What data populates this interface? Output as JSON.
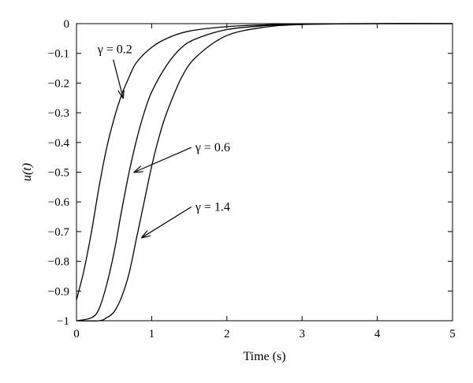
{
  "chart_data": {
    "type": "line",
    "title": "",
    "xlabel": "Time (s)",
    "ylabel": "u(t)",
    "xlim": [
      0,
      5
    ],
    "ylim": [
      -1,
      0
    ],
    "xticks": [
      0,
      1,
      2,
      3,
      4,
      5
    ],
    "yticks": [
      0,
      -0.1,
      -0.2,
      -0.3,
      -0.4,
      -0.5,
      -0.6,
      -0.7,
      -0.8,
      -0.9,
      -1
    ],
    "grid": false,
    "legend": "none",
    "line_color": "#000000",
    "series": [
      {
        "x": [
          0,
          0.1,
          0.2,
          0.3,
          0.4,
          0.5,
          0.6,
          0.7,
          0.8,
          1.0,
          1.2,
          1.5,
          2.0,
          2.5,
          3.0,
          4.0,
          5.0
        ],
        "y": [
          -0.93,
          -0.83,
          -0.7,
          -0.55,
          -0.42,
          -0.32,
          -0.24,
          -0.18,
          -0.13,
          -0.08,
          -0.05,
          -0.025,
          -0.01,
          -0.004,
          -0.001,
          0,
          0
        ]
      },
      {
        "x": [
          0,
          0.2,
          0.3,
          0.4,
          0.5,
          0.6,
          0.7,
          0.8,
          0.9,
          1.0,
          1.2,
          1.4,
          1.6,
          2.0,
          2.5,
          3.0,
          4.0,
          5.0
        ],
        "y": [
          -1,
          -0.99,
          -0.96,
          -0.88,
          -0.77,
          -0.63,
          -0.5,
          -0.39,
          -0.3,
          -0.23,
          -0.14,
          -0.08,
          -0.05,
          -0.02,
          -0.007,
          -0.002,
          0,
          0
        ]
      },
      {
        "x": [
          0,
          0.3,
          0.4,
          0.5,
          0.6,
          0.7,
          0.8,
          0.9,
          1.0,
          1.1,
          1.2,
          1.4,
          1.6,
          2.0,
          2.5,
          3.0,
          4.0,
          5.0
        ],
        "y": [
          -1,
          -1,
          -0.99,
          -0.97,
          -0.92,
          -0.84,
          -0.72,
          -0.6,
          -0.48,
          -0.38,
          -0.3,
          -0.18,
          -0.11,
          -0.04,
          -0.012,
          -0.003,
          0,
          0
        ]
      }
    ],
    "annotations": [
      {
        "label": "γ = 0.2",
        "text_at": [
          0.28,
          -0.1
        ],
        "arrow_to": [
          0.62,
          -0.25
        ]
      },
      {
        "label": "γ = 0.6",
        "text_at": [
          1.58,
          -0.43
        ],
        "arrow_to": [
          0.77,
          -0.5
        ]
      },
      {
        "label": "γ = 1.4",
        "text_at": [
          1.58,
          -0.63
        ],
        "arrow_to": [
          0.87,
          -0.72
        ]
      }
    ]
  }
}
